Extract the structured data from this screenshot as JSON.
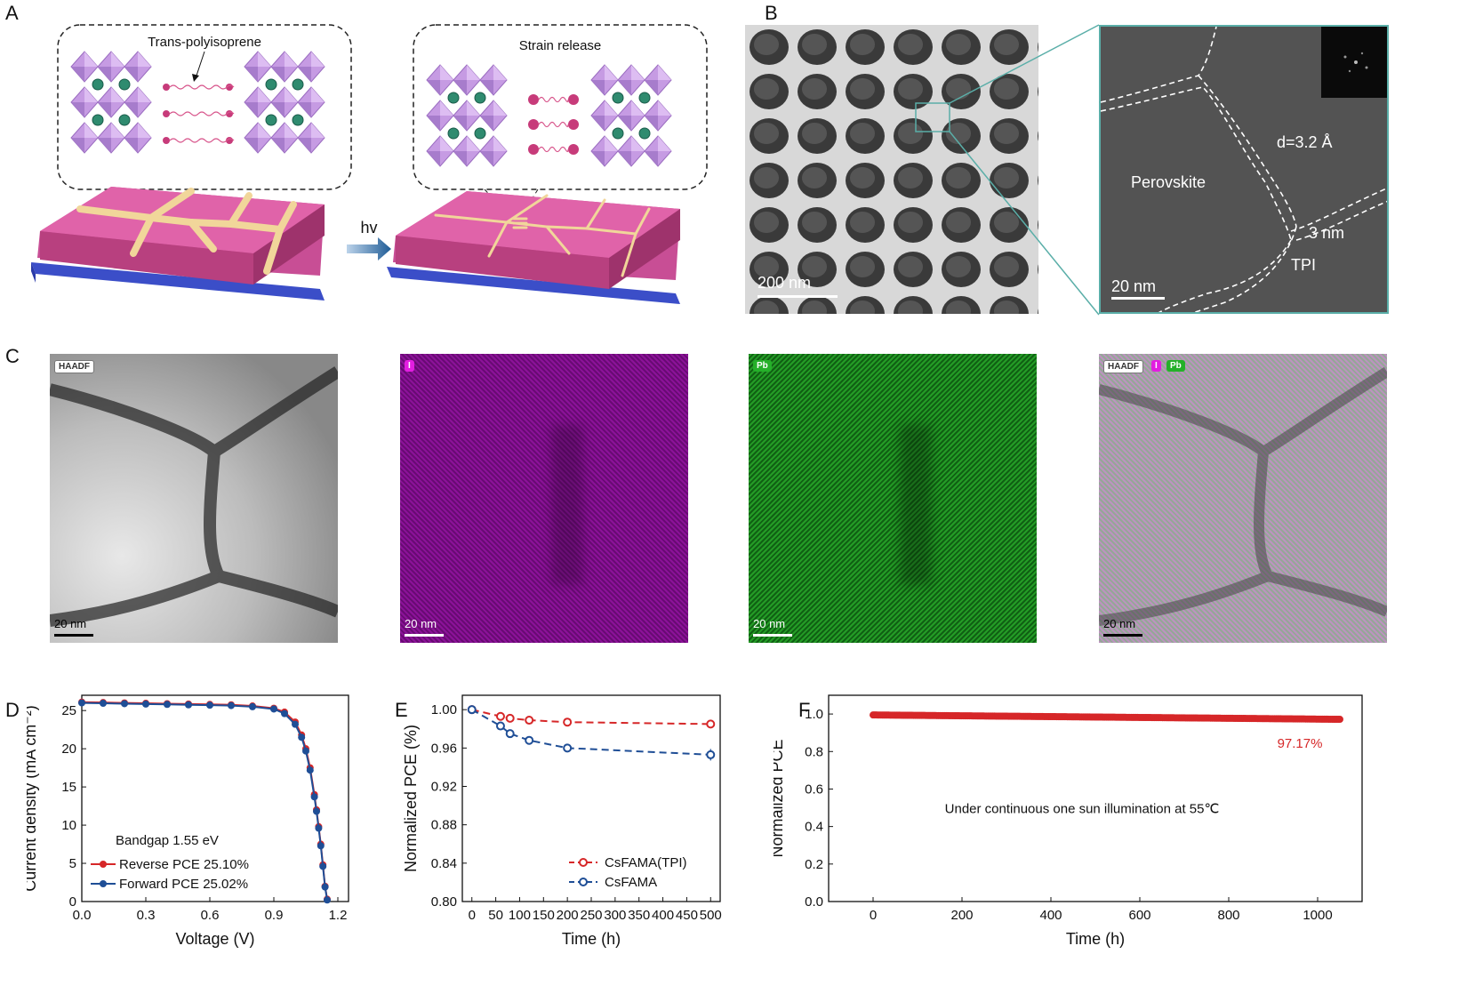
{
  "panels": {
    "A": {
      "letter": "A",
      "left_callout": "Trans-polyisoprene",
      "right_callout": "Strain release",
      "arrow_label": "hv"
    },
    "B": {
      "letter": "B",
      "scale_left": "200 nm",
      "scale_right": "20 nm",
      "label_perovskite": "Perovskite",
      "label_d": "d=3.2 Å",
      "label_3nm": "3 nm",
      "label_tpi": "TPI"
    },
    "C": {
      "letter": "C",
      "tiles": [
        {
          "tag": "HAADF",
          "scale": "20 nm"
        },
        {
          "tag": "I",
          "scale": "20 nm"
        },
        {
          "tag": "Pb",
          "scale": "20 nm"
        },
        {
          "tags": [
            "HAADF",
            "I",
            "Pb"
          ],
          "scale": "20 nm"
        }
      ]
    },
    "D": {
      "letter": "D"
    },
    "E": {
      "letter": "E"
    },
    "F": {
      "letter": "F"
    }
  },
  "colors": {
    "red": "#d62728",
    "blue": "#1f4e96",
    "purple": "#a000a8",
    "green": "#19a020",
    "teal": "#5aaea8"
  },
  "chart_data": [
    {
      "type": "line",
      "id": "D",
      "xlabel": "Voltage (V)",
      "ylabel": "Current density (mA cm⁻²)",
      "xlim": [
        0,
        1.25
      ],
      "ylim": [
        0,
        27
      ],
      "xticks": [
        "0.0",
        "0.3",
        "0.6",
        "0.9",
        "1.2"
      ],
      "yticks": [
        "0",
        "5",
        "10",
        "15",
        "20",
        "25"
      ],
      "annotation": "Bandgap 1.55 eV",
      "series": [
        {
          "name": "Reverse PCE 25.10%",
          "color": "#d62728",
          "x": [
            0,
            0.1,
            0.2,
            0.3,
            0.4,
            0.5,
            0.6,
            0.7,
            0.8,
            0.9,
            0.95,
            1.0,
            1.03,
            1.05,
            1.07,
            1.09,
            1.1,
            1.11,
            1.12,
            1.13,
            1.14,
            1.15
          ],
          "y": [
            26.1,
            26.05,
            26.0,
            25.95,
            25.9,
            25.85,
            25.8,
            25.75,
            25.6,
            25.3,
            24.8,
            23.5,
            21.8,
            20.0,
            17.5,
            14.0,
            12.0,
            9.8,
            7.5,
            4.8,
            2.0,
            0.3
          ]
        },
        {
          "name": "Forward PCE 25.02%",
          "color": "#1f4e96",
          "x": [
            0,
            0.1,
            0.2,
            0.3,
            0.4,
            0.5,
            0.6,
            0.7,
            0.8,
            0.9,
            0.95,
            1.0,
            1.03,
            1.05,
            1.07,
            1.09,
            1.1,
            1.11,
            1.12,
            1.13,
            1.14,
            1.15
          ],
          "y": [
            26.0,
            25.95,
            25.9,
            25.85,
            25.8,
            25.75,
            25.7,
            25.65,
            25.5,
            25.2,
            24.6,
            23.2,
            21.5,
            19.7,
            17.2,
            13.7,
            11.8,
            9.6,
            7.3,
            4.6,
            1.9,
            0.2
          ]
        }
      ]
    },
    {
      "type": "line",
      "id": "E",
      "xlabel": "Time (h)",
      "ylabel": "Normalized PCE (%)",
      "xlim": [
        -20,
        520
      ],
      "ylim": [
        0.8,
        1.015
      ],
      "xticks": [
        "0",
        "50",
        "100",
        "150",
        "200",
        "250",
        "300",
        "350",
        "400",
        "450",
        "500"
      ],
      "yticks": [
        "0.80",
        "0.84",
        "0.88",
        "0.92",
        "0.96",
        "1.00"
      ],
      "series": [
        {
          "name": "CsFAMA(TPI)",
          "color": "#d62728",
          "x": [
            0,
            60,
            80,
            120,
            200,
            500
          ],
          "y": [
            1.0,
            0.993,
            0.991,
            0.989,
            0.987,
            0.985
          ],
          "err": [
            0.001,
            0.004,
            0.003,
            0.002,
            0.002,
            0.003
          ]
        },
        {
          "name": "CsFAMA",
          "color": "#1f4e96",
          "x": [
            0,
            60,
            80,
            120,
            200,
            500
          ],
          "y": [
            1.0,
            0.983,
            0.975,
            0.968,
            0.96,
            0.953
          ],
          "err": [
            0.001,
            0.004,
            0.003,
            0.003,
            0.003,
            0.006
          ]
        }
      ]
    },
    {
      "type": "scatter",
      "id": "F",
      "xlabel": "Time (h)",
      "ylabel": "Normalized PCE",
      "xlim": [
        -100,
        1100
      ],
      "ylim": [
        0,
        1.1
      ],
      "xticks": [
        "0",
        "200",
        "400",
        "600",
        "800",
        "1000"
      ],
      "yticks": [
        "0.0",
        "0.2",
        "0.4",
        "0.6",
        "0.8",
        "1.0"
      ],
      "annotation": "Under continuous one sun illumination at 55℃",
      "end_label": "97.17%",
      "series": [
        {
          "name": "",
          "color": "#d62728",
          "x_start": 0,
          "x_end": 1050,
          "y_start": 0.995,
          "y_end": 0.9717
        }
      ]
    }
  ]
}
